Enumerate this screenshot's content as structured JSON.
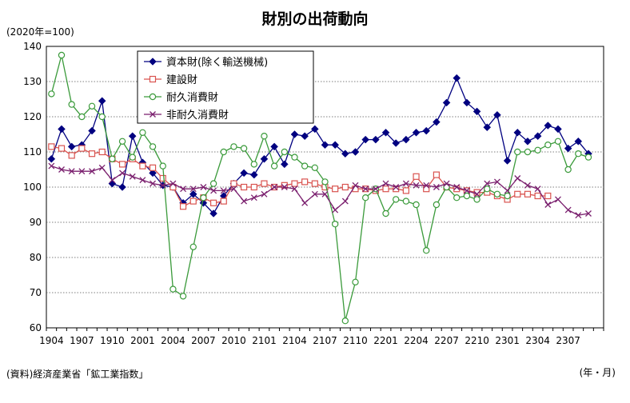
{
  "chart_data": {
    "type": "line",
    "title": "財別の出荷動向",
    "unit_label": "(2020年=100)",
    "source": "(資料)経済産業省「鉱工業指数」",
    "xlabel": "(年・月)",
    "ylim": [
      60,
      140
    ],
    "y_ticks": [
      "60",
      "70",
      "80",
      "90",
      "100",
      "110",
      "120",
      "130",
      "140"
    ],
    "x_tick_labels": [
      "1904",
      "1907",
      "1910",
      "2001",
      "2004",
      "2007",
      "2010",
      "2101",
      "2104",
      "2107",
      "2110",
      "2201",
      "2204",
      "2207",
      "2210",
      "2301",
      "2304",
      "2307"
    ],
    "grid": "horizontal dotted",
    "legend_position": "top-left (inside)",
    "x": [
      "1904",
      "1905",
      "1906",
      "1907",
      "1908",
      "1909",
      "1910",
      "1911",
      "1912",
      "2001",
      "2002",
      "2003",
      "2004",
      "2005",
      "2006",
      "2007",
      "2008",
      "2009",
      "2010",
      "2011",
      "2012",
      "2101",
      "2102",
      "2103",
      "2104",
      "2105",
      "2106",
      "2107",
      "2108",
      "2109",
      "2110",
      "2111",
      "2112",
      "2201",
      "2202",
      "2203",
      "2204",
      "2205",
      "2206",
      "2207",
      "2208",
      "2209",
      "2210",
      "2211",
      "2212",
      "2301",
      "2302",
      "2303",
      "2304",
      "2305",
      "2306",
      "2307",
      "2308",
      "2309",
      "2310"
    ],
    "series": [
      {
        "name": "資本財(除く輸送機械)",
        "color": "#000080",
        "marker": "diamond",
        "values": [
          108,
          116.5,
          111.5,
          112,
          116,
          124.5,
          101,
          100,
          114.5,
          107,
          104,
          100.5,
          100,
          95.5,
          98,
          95.5,
          92.5,
          97.5,
          101,
          104,
          103.5,
          108,
          111.5,
          106.5,
          115,
          114.5,
          116.5,
          112,
          112,
          109.5,
          110,
          113.5,
          113.5,
          115.5,
          112.5,
          113.5,
          115.5,
          116,
          118.5,
          124,
          131,
          124,
          121.5,
          117,
          120.5,
          107.5,
          115.5,
          113,
          114.5,
          117.5,
          116.5,
          111,
          113,
          109.5,
          null
        ]
      },
      {
        "name": "建設財",
        "color": "#d9534f",
        "marker": "square",
        "values": [
          111.5,
          111,
          109,
          111,
          109.5,
          110,
          108,
          106.5,
          108,
          106,
          105.5,
          102.5,
          100,
          94.5,
          96,
          97,
          95.5,
          96,
          101,
          100,
          100,
          101,
          100,
          100.5,
          101,
          101.5,
          101,
          100,
          99.5,
          100,
          99.5,
          99.5,
          99,
          99.5,
          99.5,
          99,
          103,
          99.5,
          103.5,
          100,
          99.5,
          99,
          98.5,
          98.5,
          97.5,
          96.5,
          98,
          98,
          97.5,
          97.5,
          null,
          null,
          null,
          null,
          null
        ]
      },
      {
        "name": "耐久消費財",
        "color": "#3a9a3a",
        "marker": "circle",
        "values": [
          126.5,
          137.5,
          123.5,
          120,
          123,
          120,
          108,
          113,
          108.5,
          115.5,
          111.5,
          106,
          71,
          69,
          83,
          97,
          101,
          110,
          111.5,
          111,
          106.5,
          114.5,
          106,
          110,
          108.5,
          106,
          105.5,
          101.5,
          89.5,
          62,
          73,
          97,
          99.5,
          92.5,
          96.5,
          96,
          95,
          82,
          95,
          100,
          97,
          97.5,
          96.5,
          99.5,
          98,
          97.5,
          110,
          110,
          110.5,
          112,
          113,
          105,
          109.5,
          108.5,
          null
        ]
      },
      {
        "name": "非耐久消費財",
        "color": "#7a1f6e",
        "marker": "x",
        "values": [
          106,
          105,
          104.5,
          104.5,
          104.5,
          105.5,
          102,
          104,
          103,
          102,
          101,
          100.5,
          101,
          99.5,
          99.5,
          100,
          99,
          99,
          99.5,
          96,
          97,
          98,
          100,
          100,
          99.5,
          95.5,
          98,
          98,
          93.5,
          96,
          100.5,
          99.5,
          99.5,
          101,
          100,
          101,
          100.5,
          100.5,
          100,
          101,
          100,
          99,
          98,
          101,
          101.5,
          99,
          102.5,
          100.5,
          99.5,
          95,
          96.5,
          93.5,
          92,
          92.5,
          null
        ]
      }
    ]
  }
}
